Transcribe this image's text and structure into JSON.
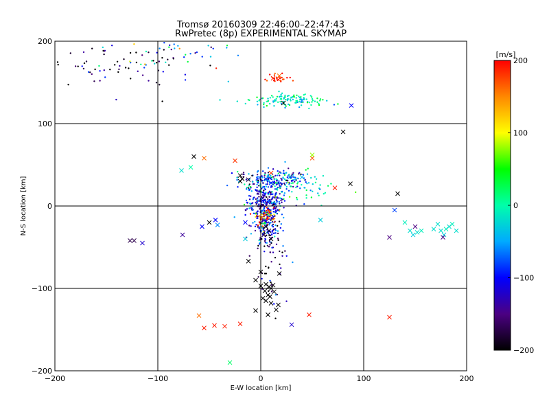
{
  "chart_data": {
    "type": "scatter",
    "title": "Tromsø 20160309 22:46:00–22:47:43",
    "subtitle": "RwPretec (8p) EXPERIMENTAL SKYMAP",
    "xlabel": "E-W location [km]",
    "ylabel": "N-S location [km]",
    "xlim": [
      -200,
      200
    ],
    "ylim": [
      -200,
      200
    ],
    "xticks": [
      -200,
      -100,
      0,
      100,
      200
    ],
    "yticks": [
      -200,
      -100,
      0,
      100,
      200
    ],
    "grid": true,
    "colorbar": {
      "label": "[m/s]",
      "range": [
        -200,
        200
      ],
      "ticks": [
        200,
        100,
        0,
        -100,
        -200
      ],
      "colormap": [
        "#000000",
        "#4b0082",
        "#0000ff",
        "#00aaff",
        "#00ffaa",
        "#00ff00",
        "#ffff00",
        "#ff8800",
        "#ff0000"
      ]
    },
    "series": [
      {
        "marker": "x",
        "points": [
          {
            "x": -20,
            "y": 37,
            "v": -200
          },
          {
            "x": -18,
            "y": 33,
            "v": -200
          },
          {
            "x": -12,
            "y": 32,
            "v": -180
          },
          {
            "x": 5,
            "y": 33,
            "v": -80
          },
          {
            "x": 10,
            "y": 28,
            "v": -90
          },
          {
            "x": 28,
            "y": 35,
            "v": -60
          },
          {
            "x": 40,
            "y": 35,
            "v": -40
          },
          {
            "x": -68,
            "y": 47,
            "v": 0
          },
          {
            "x": -77,
            "y": 43,
            "v": -20
          },
          {
            "x": -65,
            "y": 60,
            "v": -200
          },
          {
            "x": -55,
            "y": 58,
            "v": 160
          },
          {
            "x": -25,
            "y": 55,
            "v": 180
          },
          {
            "x": 10,
            "y": 40,
            "v": 180
          },
          {
            "x": 50,
            "y": 58,
            "v": 170
          },
          {
            "x": 50,
            "y": 62,
            "v": 80
          },
          {
            "x": 72,
            "y": 22,
            "v": 190
          },
          {
            "x": 87,
            "y": 27,
            "v": -200
          },
          {
            "x": 80,
            "y": 90,
            "v": -200
          },
          {
            "x": 22,
            "y": 125,
            "v": -200
          },
          {
            "x": 40,
            "y": 128,
            "v": -60
          },
          {
            "x": 88,
            "y": 122,
            "v": -100
          },
          {
            "x": 12,
            "y": 155,
            "v": 190
          },
          {
            "x": 18,
            "y": 158,
            "v": 160
          },
          {
            "x": -20,
            "y": 30,
            "v": -200
          },
          {
            "x": -15,
            "y": -20,
            "v": -100
          },
          {
            "x": -15,
            "y": -40,
            "v": -30
          },
          {
            "x": 5,
            "y": -25,
            "v": -200
          },
          {
            "x": 8,
            "y": -30,
            "v": -190
          },
          {
            "x": 3,
            "y": -35,
            "v": -180
          },
          {
            "x": 10,
            "y": -40,
            "v": -200
          },
          {
            "x": -12,
            "y": -67,
            "v": -200
          },
          {
            "x": 0,
            "y": -80,
            "v": -200
          },
          {
            "x": 18,
            "y": -82,
            "v": -200
          },
          {
            "x": -5,
            "y": -90,
            "v": -200
          },
          {
            "x": 0,
            "y": -97,
            "v": -200
          },
          {
            "x": 5,
            "y": -95,
            "v": -200
          },
          {
            "x": 8,
            "y": -98,
            "v": -200
          },
          {
            "x": 10,
            "y": -100,
            "v": -200
          },
          {
            "x": 12,
            "y": -96,
            "v": -200
          },
          {
            "x": 4,
            "y": -103,
            "v": -200
          },
          {
            "x": 7,
            "y": -108,
            "v": -200
          },
          {
            "x": 2,
            "y": -112,
            "v": -200
          },
          {
            "x": 5,
            "y": -115,
            "v": -200
          },
          {
            "x": 9,
            "y": -110,
            "v": -200
          },
          {
            "x": 13,
            "y": -104,
            "v": -200
          },
          {
            "x": 17,
            "y": -120,
            "v": -200
          },
          {
            "x": 10,
            "y": -118,
            "v": -200
          },
          {
            "x": 15,
            "y": -126,
            "v": -200
          },
          {
            "x": -5,
            "y": -127,
            "v": -200
          },
          {
            "x": 7,
            "y": -132,
            "v": -200
          },
          {
            "x": 30,
            "y": -144,
            "v": -120
          },
          {
            "x": 47,
            "y": -132,
            "v": 190
          },
          {
            "x": -60,
            "y": -133,
            "v": 160
          },
          {
            "x": -55,
            "y": -148,
            "v": 190
          },
          {
            "x": -45,
            "y": -145,
            "v": 190
          },
          {
            "x": -35,
            "y": -146,
            "v": 190
          },
          {
            "x": -20,
            "y": -143,
            "v": 190
          },
          {
            "x": -30,
            "y": -190,
            "v": 20
          },
          {
            "x": 125,
            "y": -135,
            "v": 190
          },
          {
            "x": -127,
            "y": -42,
            "v": -170
          },
          {
            "x": -123,
            "y": -42,
            "v": -170
          },
          {
            "x": -115,
            "y": -45,
            "v": -120
          },
          {
            "x": -76,
            "y": -35,
            "v": -140
          },
          {
            "x": -57,
            "y": -25,
            "v": -100
          },
          {
            "x": -50,
            "y": -20,
            "v": -200
          },
          {
            "x": -44,
            "y": -17,
            "v": -100
          },
          {
            "x": -42,
            "y": -23,
            "v": -60
          },
          {
            "x": 58,
            "y": -17,
            "v": -30
          },
          {
            "x": 125,
            "y": -38,
            "v": -150
          },
          {
            "x": 130,
            "y": -5,
            "v": -80
          },
          {
            "x": 133,
            "y": 15,
            "v": -200
          },
          {
            "x": 140,
            "y": -20,
            "v": -10
          },
          {
            "x": 145,
            "y": -30,
            "v": -20
          },
          {
            "x": 148,
            "y": -35,
            "v": -30
          },
          {
            "x": 150,
            "y": -25,
            "v": -150
          },
          {
            "x": 152,
            "y": -32,
            "v": -20
          },
          {
            "x": 156,
            "y": -30,
            "v": -10
          },
          {
            "x": 172,
            "y": -22,
            "v": -20
          },
          {
            "x": 175,
            "y": -30,
            "v": -20
          },
          {
            "x": 178,
            "y": -35,
            "v": -30
          },
          {
            "x": 180,
            "y": -28,
            "v": -10
          },
          {
            "x": 183,
            "y": -25,
            "v": -20
          },
          {
            "x": 186,
            "y": -22,
            "v": -10
          },
          {
            "x": 177,
            "y": -38,
            "v": -150
          },
          {
            "x": 190,
            "y": -30,
            "v": -20
          },
          {
            "x": 168,
            "y": -28,
            "v": -20
          }
        ]
      },
      {
        "marker": "dot",
        "clusters": [
          {
            "cx": 5,
            "cy": 5,
            "sx": 9,
            "sy": 12,
            "n": 260,
            "vmean": -110,
            "vspread": 40
          },
          {
            "cx": 5,
            "cy": -25,
            "sx": 7,
            "sy": 14,
            "n": 150,
            "vmean": -120,
            "vspread": 50
          },
          {
            "cx": 12,
            "cy": 32,
            "sx": 18,
            "sy": 6,
            "n": 200,
            "vmean": -90,
            "vspread": 60
          },
          {
            "cx": 5,
            "cy": -12,
            "sx": 5,
            "sy": 6,
            "n": 60,
            "vmean": 140,
            "vspread": 60
          },
          {
            "cx": 28,
            "cy": 128,
            "sx": 18,
            "sy": 4,
            "n": 120,
            "vmean": -5,
            "vspread": 25
          },
          {
            "cx": 15,
            "cy": 155,
            "sx": 6,
            "sy": 4,
            "n": 25,
            "vmean": 185,
            "vspread": 15
          },
          {
            "cx": -140,
            "cy": 172,
            "sx": 40,
            "sy": 18,
            "n": 70,
            "vmean": -180,
            "vspread": 60
          },
          {
            "cx": -90,
            "cy": 185,
            "sx": 30,
            "sy": 12,
            "n": 40,
            "vmean": -60,
            "vspread": 100
          },
          {
            "cx": 10,
            "cy": -70,
            "sx": 8,
            "sy": 25,
            "n": 40,
            "vmean": -150,
            "vspread": 60
          },
          {
            "cx": 35,
            "cy": 20,
            "sx": 20,
            "sy": 12,
            "n": 60,
            "vmean": -10,
            "vspread": 40
          }
        ]
      }
    ]
  }
}
